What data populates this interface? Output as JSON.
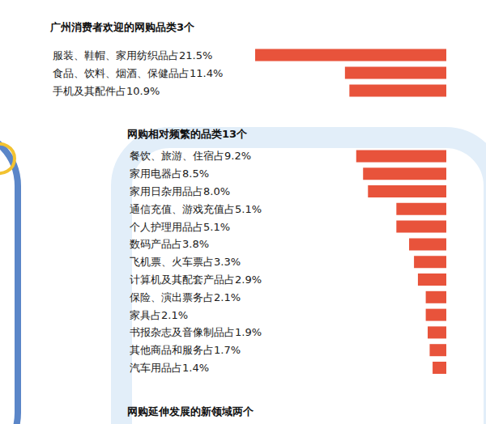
{
  "chart_data": [
    {
      "type": "bar",
      "title": "广州消费者欢迎的网购品类3个",
      "categories": [
        "服装、鞋帽、家用纺织品占21.5%",
        "食品、饮料、烟酒、保健品占11.4%",
        "手机及其配件占10.9%"
      ],
      "values": [
        21.5,
        11.4,
        10.9
      ],
      "color": "#e8533b",
      "orientation": "horizontal",
      "xlim": [
        0,
        45
      ],
      "tick_labels": false,
      "grid": false,
      "data_labels": false
    },
    {
      "type": "bar",
      "title": "网购相对频繁的品类13个",
      "categories": [
        "餐饮、旅游、住宿占9.2%",
        "家用电器占8.5%",
        "家用日杂用品占8.0%",
        "通信充值、游戏充值占5.1%",
        "个人护理用品占5.1%",
        "数码产品占3.8%",
        "飞机票、火车票占3.3%",
        "计算机及其配套产品占2.9%",
        "保险、演出票务占2.1%",
        "家具占2.1%",
        "书报杂志及音像制品占1.9%",
        "其他商品和服务占1.7%",
        "汽车用品占1.4%"
      ],
      "values": [
        9.2,
        8.5,
        8.0,
        5.1,
        5.1,
        3.8,
        3.3,
        2.9,
        2.1,
        2.1,
        1.9,
        1.7,
        1.4
      ],
      "color": "#e8533b",
      "orientation": "horizontal",
      "xlim": [
        0,
        33
      ],
      "tick_labels": false,
      "grid": false,
      "data_labels": false
    },
    {
      "type": "bar",
      "title": "网购延伸发展的新领域两个"
    }
  ]
}
